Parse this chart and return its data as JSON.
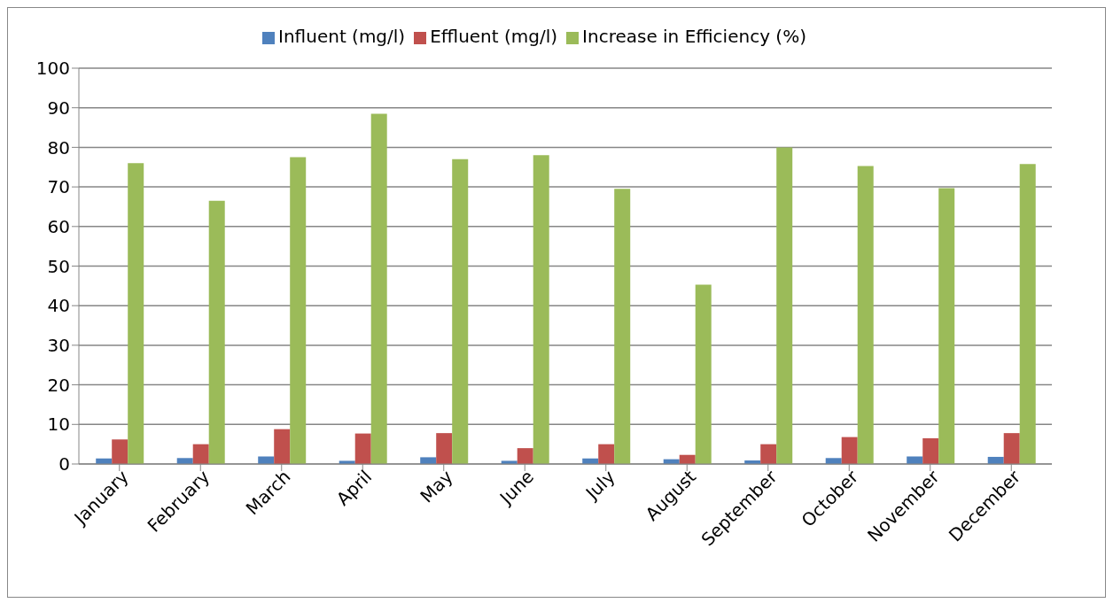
{
  "chart_data": {
    "type": "bar",
    "categories": [
      "January",
      "February",
      "March",
      "April",
      "May",
      "June",
      "July",
      "August",
      "September",
      "October",
      "November",
      "December"
    ],
    "series": [
      {
        "name": "Influent (mg/l)",
        "color": "#4f81bd",
        "values": [
          1.4,
          1.5,
          1.9,
          0.8,
          1.7,
          0.8,
          1.4,
          1.2,
          0.9,
          1.5,
          1.9,
          1.8
        ]
      },
      {
        "name": "Effluent (mg/l)",
        "color": "#c0504d",
        "values": [
          6.2,
          5.0,
          8.8,
          7.7,
          7.8,
          4.0,
          5.0,
          2.3,
          5.0,
          6.8,
          6.5,
          7.8
        ]
      },
      {
        "name": "Increase in Efficiency (%)",
        "color": "#9bbb59",
        "values": [
          76,
          66.5,
          77.5,
          88.5,
          77,
          78,
          69.5,
          45.3,
          80,
          75.3,
          69.7,
          75.8
        ]
      }
    ],
    "ylim": [
      0,
      100
    ],
    "yticks": [
      0,
      10,
      20,
      30,
      40,
      50,
      60,
      70,
      80,
      90,
      100
    ],
    "grid": "y",
    "legend": "top"
  }
}
